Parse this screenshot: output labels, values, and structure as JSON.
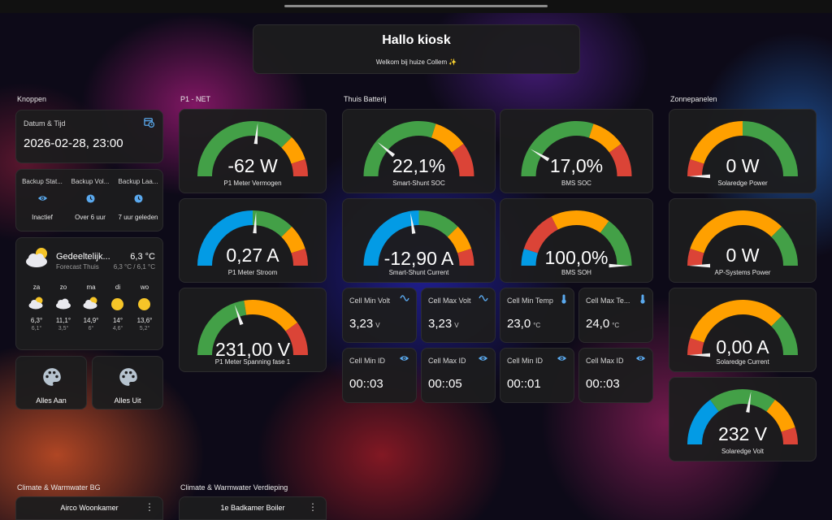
{
  "header": {
    "title": "Hallo kiosk",
    "subtitle": "Welkom bij huize Collem ✨"
  },
  "sections": {
    "knoppen": "Knoppen",
    "p1_net": "P1 - NET",
    "batterij": "Thuis Batterij",
    "zonnepanelen": "Zonnepanelen",
    "climate_bg": "Climate & Warmwater BG",
    "climate_verdieping": "Climate & Warmwater Verdieping"
  },
  "datetime": {
    "label": "Datum & Tijd",
    "value": "2026-02-28, 23:00",
    "icon": "calendar-clock-icon"
  },
  "backup": [
    {
      "name": "Backup Stat...",
      "state": "Inactief",
      "icon": "eye-icon"
    },
    {
      "name": "Backup Vol...",
      "state": "Over 6 uur",
      "icon": "clock-icon"
    },
    {
      "name": "Backup Laa...",
      "state": "7 uur geleden",
      "icon": "clock-icon"
    }
  ],
  "weather": {
    "condition": "Gedeeltelijk...",
    "source": "Forecast Thuis",
    "temp": "6,3 °C",
    "range": "6,3 °C / 6,1 °C",
    "forecast": [
      {
        "day": "za",
        "hi": "6,3°",
        "lo": "6,1°",
        "icon": "partly-cloudy-night-icon"
      },
      {
        "day": "zo",
        "hi": "11,1°",
        "lo": "3,5°",
        "icon": "cloudy-icon"
      },
      {
        "day": "ma",
        "hi": "14,9°",
        "lo": "6°",
        "icon": "partly-cloudy-icon"
      },
      {
        "day": "di",
        "hi": "14°",
        "lo": "4,6°",
        "icon": "sunny-icon"
      },
      {
        "day": "wo",
        "hi": "13,6°",
        "lo": "5,2°",
        "icon": "sunny-icon"
      }
    ]
  },
  "buttons": {
    "all_on": "Alles Aan",
    "all_off": "Alles Uit",
    "icon": "palette-icon"
  },
  "gauges": {
    "p1_power": {
      "value": "-62 W",
      "label": "P1 Meter Vermogen",
      "level": 0.53,
      "segments": [
        [
          "#43a047",
          0,
          0.75
        ],
        [
          "#ffa000",
          0.75,
          0.9
        ],
        [
          "#db4437",
          0.9,
          1
        ]
      ]
    },
    "p1_current": {
      "value": "0,27 A",
      "label": "P1 Meter Stroom",
      "level": 0.52,
      "segments": [
        [
          "#039be5",
          0,
          0.5
        ],
        [
          "#43a047",
          0.5,
          0.75
        ],
        [
          "#ffa000",
          0.75,
          0.9
        ],
        [
          "#db4437",
          0.9,
          1
        ]
      ]
    },
    "p1_voltage": {
      "value": "231,00 V",
      "label": "P1 Meter Spanning fase 1",
      "level": 0.39,
      "segments": [
        [
          "#43a047",
          0,
          0.45
        ],
        [
          "#ffa000",
          0.45,
          0.8
        ],
        [
          "#db4437",
          0.8,
          1
        ]
      ]
    },
    "shunt_soc": {
      "value": "22,1%",
      "label": "Smart-Shunt SOC",
      "level": 0.22,
      "segments": [
        [
          "#43a047",
          0,
          0.6
        ],
        [
          "#ffa000",
          0.6,
          0.8
        ],
        [
          "#db4437",
          0.8,
          1
        ]
      ]
    },
    "shunt_current": {
      "value": "-12,90 A",
      "label": "Smart-Shunt Current",
      "level": 0.45,
      "segments": [
        [
          "#039be5",
          0,
          0.5
        ],
        [
          "#43a047",
          0.5,
          0.75
        ],
        [
          "#ffa000",
          0.75,
          0.9
        ],
        [
          "#db4437",
          0.9,
          1
        ]
      ]
    },
    "bms_soc": {
      "value": "17,0%",
      "label": "BMS SOC",
      "level": 0.17,
      "segments": [
        [
          "#43a047",
          0,
          0.6
        ],
        [
          "#ffa000",
          0.6,
          0.8
        ],
        [
          "#db4437",
          0.8,
          1
        ]
      ]
    },
    "bms_soh": {
      "value": "100,0%",
      "label": "BMS SOH",
      "level": 1.0,
      "segments": [
        [
          "#039be5",
          0,
          0.1
        ],
        [
          "#db4437",
          0.1,
          0.35
        ],
        [
          "#ffa000",
          0.35,
          0.7
        ],
        [
          "#43a047",
          0.7,
          1
        ]
      ]
    },
    "se_power": {
      "value": "0 W",
      "label": "Solaredge Power",
      "level": 0.0,
      "segments": [
        [
          "#db4437",
          0,
          0.1
        ],
        [
          "#ffa000",
          0.1,
          0.5
        ],
        [
          "#43a047",
          0.5,
          1
        ]
      ]
    },
    "ap_power": {
      "value": "0 W",
      "label": "AP-Systems Power",
      "level": 0.0,
      "segments": [
        [
          "#db4437",
          0,
          0.1
        ],
        [
          "#ffa000",
          0.1,
          0.75
        ],
        [
          "#43a047",
          0.75,
          1
        ]
      ]
    },
    "se_current": {
      "value": "0,00 A",
      "label": "Solaredge Current",
      "level": 0.0,
      "segments": [
        [
          "#db4437",
          0,
          0.1
        ],
        [
          "#ffa000",
          0.1,
          0.75
        ],
        [
          "#43a047",
          0.75,
          1
        ]
      ]
    },
    "se_volt": {
      "value": "232 V",
      "label": "Solaredge Volt",
      "level": 0.55,
      "segments": [
        [
          "#039be5",
          0,
          0.3
        ],
        [
          "#43a047",
          0.3,
          0.7
        ],
        [
          "#ffa000",
          0.7,
          0.9
        ],
        [
          "#db4437",
          0.9,
          1
        ]
      ]
    }
  },
  "cells": [
    {
      "name": "Cell Min Volt",
      "value": "3,23",
      "unit": "V",
      "icon": "sine-wave-icon"
    },
    {
      "name": "Cell Max Volt",
      "value": "3,23",
      "unit": "V",
      "icon": "sine-wave-icon"
    },
    {
      "name": "Cell Min Temp",
      "value": "23,0",
      "unit": "°C",
      "icon": "thermometer-icon"
    },
    {
      "name": "Cell Max Te...",
      "value": "24,0",
      "unit": "°C",
      "icon": "thermometer-icon"
    },
    {
      "name": "Cell Min ID",
      "value": "00::03",
      "unit": "",
      "icon": "eye-icon"
    },
    {
      "name": "Cell Max ID",
      "value": "00::05",
      "unit": "",
      "icon": "eye-icon"
    },
    {
      "name": "Cell Min ID",
      "value": "00::01",
      "unit": "",
      "icon": "eye-icon"
    },
    {
      "name": "Cell Max ID",
      "value": "00::03",
      "unit": "",
      "icon": "eye-icon"
    }
  ],
  "climate": {
    "bg_name": "Airco Woonkamer",
    "verdieping_name": "1e Badkamer Boiler",
    "menu_icon": "⋮"
  }
}
